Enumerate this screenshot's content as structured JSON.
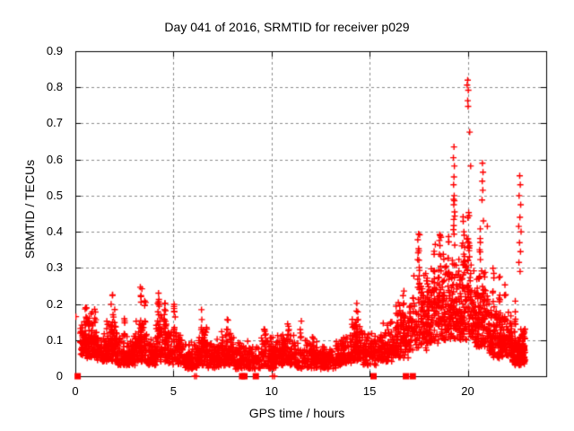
{
  "chart_data": {
    "type": "scatter",
    "title": "Day 041 of 2016, SRMTID for receiver p029",
    "xlabel": "GPS time / hours",
    "ylabel": "SRMTID / TECUs",
    "xlim": [
      0,
      24
    ],
    "ylim": [
      0,
      0.9
    ],
    "xticks": [
      {
        "v": 0,
        "label": "0"
      },
      {
        "v": 5,
        "label": "5"
      },
      {
        "v": 10,
        "label": "10"
      },
      {
        "v": 15,
        "label": "15"
      },
      {
        "v": 20,
        "label": "20"
      }
    ],
    "yticks": [
      {
        "v": 0.0,
        "label": "0"
      },
      {
        "v": 0.1,
        "label": "0.1"
      },
      {
        "v": 0.2,
        "label": "0.2"
      },
      {
        "v": 0.3,
        "label": "0.3"
      },
      {
        "v": 0.4,
        "label": "0.4"
      },
      {
        "v": 0.5,
        "label": "0.5"
      },
      {
        "v": 0.6,
        "label": "0.6"
      },
      {
        "v": 0.7,
        "label": "0.7"
      },
      {
        "v": 0.8,
        "label": "0.8"
      },
      {
        "v": 0.9,
        "label": "0.9"
      }
    ],
    "grid": true,
    "legend": "none",
    "marker": "plus",
    "colors": {
      "marker": "#ff0000",
      "grid": "#8c8c8c",
      "frame": "#000000",
      "background": "#ffffff",
      "text": "#000000"
    },
    "scatter_model": {
      "seed": 20160041,
      "bands": [
        [
          0.25,
          1.05,
          140,
          0.05,
          0.18
        ],
        [
          1.05,
          1.6,
          80,
          0.04,
          0.13
        ],
        [
          1.6,
          2.15,
          100,
          0.04,
          0.19
        ],
        [
          2.15,
          3.05,
          120,
          0.03,
          0.12
        ],
        [
          3.05,
          3.65,
          90,
          0.04,
          0.17
        ],
        [
          3.65,
          4.1,
          65,
          0.03,
          0.12
        ],
        [
          4.1,
          4.75,
          95,
          0.04,
          0.18
        ],
        [
          4.75,
          5.45,
          90,
          0.03,
          0.15
        ],
        [
          5.45,
          6.25,
          100,
          0.02,
          0.11
        ],
        [
          6.25,
          6.75,
          75,
          0.03,
          0.15
        ],
        [
          6.75,
          7.45,
          95,
          0.02,
          0.11
        ],
        [
          7.45,
          8.05,
          85,
          0.03,
          0.14
        ],
        [
          8.05,
          8.7,
          75,
          0.02,
          0.11
        ],
        [
          8.7,
          9.35,
          65,
          0.02,
          0.1
        ],
        [
          9.35,
          10.25,
          110,
          0.02,
          0.12
        ],
        [
          10.25,
          11.25,
          130,
          0.03,
          0.13
        ],
        [
          11.25,
          12.3,
          120,
          0.02,
          0.12
        ],
        [
          12.3,
          13.3,
          110,
          0.02,
          0.1
        ],
        [
          13.3,
          14.1,
          100,
          0.03,
          0.13
        ],
        [
          14.1,
          14.65,
          85,
          0.04,
          0.18
        ],
        [
          14.65,
          15.5,
          95,
          0.03,
          0.13
        ],
        [
          15.5,
          16.3,
          100,
          0.04,
          0.16
        ],
        [
          16.3,
          17.0,
          100,
          0.05,
          0.22
        ],
        [
          17.0,
          17.9,
          120,
          0.07,
          0.3
        ],
        [
          17.9,
          18.7,
          130,
          0.09,
          0.33
        ],
        [
          18.7,
          19.45,
          140,
          0.1,
          0.38
        ],
        [
          19.45,
          20.35,
          150,
          0.1,
          0.4
        ],
        [
          20.35,
          21.1,
          140,
          0.08,
          0.32
        ],
        [
          21.1,
          22.25,
          190,
          0.05,
          0.22
        ],
        [
          22.25,
          22.95,
          130,
          0.03,
          0.15
        ]
      ],
      "spikes": [
        [
          0.55,
          0.12,
          0.12,
          0.215,
          9
        ],
        [
          1.0,
          0.1,
          0.1,
          0.19,
          6
        ],
        [
          1.85,
          0.12,
          0.12,
          0.235,
          10
        ],
        [
          2.5,
          0.08,
          0.09,
          0.16,
          6
        ],
        [
          3.35,
          0.1,
          0.12,
          0.25,
          10
        ],
        [
          3.55,
          0.08,
          0.1,
          0.21,
          6
        ],
        [
          4.25,
          0.1,
          0.12,
          0.23,
          8
        ],
        [
          4.55,
          0.1,
          0.12,
          0.22,
          8
        ],
        [
          5.05,
          0.08,
          0.1,
          0.2,
          7
        ],
        [
          6.45,
          0.08,
          0.09,
          0.19,
          7
        ],
        [
          7.75,
          0.08,
          0.09,
          0.175,
          6
        ],
        [
          9.65,
          0.08,
          0.08,
          0.145,
          5
        ],
        [
          10.85,
          0.1,
          0.09,
          0.155,
          6
        ],
        [
          11.5,
          0.08,
          0.08,
          0.155,
          5
        ],
        [
          14.35,
          0.1,
          0.1,
          0.21,
          8
        ],
        [
          16.1,
          0.08,
          0.1,
          0.17,
          5
        ],
        [
          16.7,
          0.1,
          0.12,
          0.25,
          7
        ],
        [
          17.5,
          0.12,
          0.22,
          0.42,
          14
        ],
        [
          18.3,
          0.1,
          0.2,
          0.37,
          10
        ],
        [
          18.6,
          0.1,
          0.22,
          0.4,
          10
        ],
        [
          19.0,
          0.1,
          0.25,
          0.44,
          10
        ],
        [
          19.3,
          0.08,
          0.36,
          0.5,
          8
        ],
        [
          19.8,
          0.1,
          0.3,
          0.47,
          10
        ],
        [
          20.05,
          0.1,
          0.3,
          0.45,
          10
        ],
        [
          20.6,
          0.1,
          0.25,
          0.44,
          8
        ],
        [
          21.3,
          0.08,
          0.15,
          0.3,
          6
        ],
        [
          21.6,
          0.1,
          0.15,
          0.33,
          7
        ],
        [
          21.9,
          0.08,
          0.14,
          0.27,
          6
        ],
        [
          22.4,
          0.08,
          0.12,
          0.25,
          6
        ],
        [
          22.82,
          0.18,
          0.03,
          0.13,
          32
        ]
      ],
      "outlier_points": [
        [
          0.03,
          0.165
        ],
        [
          19.3,
          0.635
        ],
        [
          19.27,
          0.605
        ],
        [
          19.32,
          0.582
        ],
        [
          19.3,
          0.552
        ],
        [
          19.28,
          0.53
        ],
        [
          19.31,
          0.5
        ],
        [
          19.29,
          0.475
        ],
        [
          19.33,
          0.455
        ],
        [
          20.0,
          0.82
        ],
        [
          19.97,
          0.806
        ],
        [
          20.03,
          0.792
        ],
        [
          20.0,
          0.763
        ],
        [
          20.02,
          0.747
        ],
        [
          20.1,
          0.676
        ],
        [
          20.15,
          0.582
        ],
        [
          20.05,
          0.453
        ],
        [
          20.75,
          0.59
        ],
        [
          20.78,
          0.565
        ],
        [
          20.74,
          0.54
        ],
        [
          20.77,
          0.515
        ],
        [
          20.73,
          0.488
        ],
        [
          20.8,
          0.43
        ],
        [
          21.0,
          0.415
        ],
        [
          22.65,
          0.555
        ],
        [
          22.68,
          0.53
        ],
        [
          22.62,
          0.5
        ],
        [
          22.7,
          0.475
        ],
        [
          22.66,
          0.44
        ],
        [
          22.6,
          0.415
        ],
        [
          22.72,
          0.4
        ],
        [
          22.64,
          0.37
        ],
        [
          22.69,
          0.345
        ],
        [
          22.61,
          0.315
        ],
        [
          22.67,
          0.29
        ]
      ],
      "zero_squares": [
        0.12,
        8.5,
        8.62,
        9.2,
        15.2,
        16.85,
        17.2
      ],
      "zero_crosses": [
        6.08,
        6.17,
        10.05,
        10.15
      ]
    }
  }
}
